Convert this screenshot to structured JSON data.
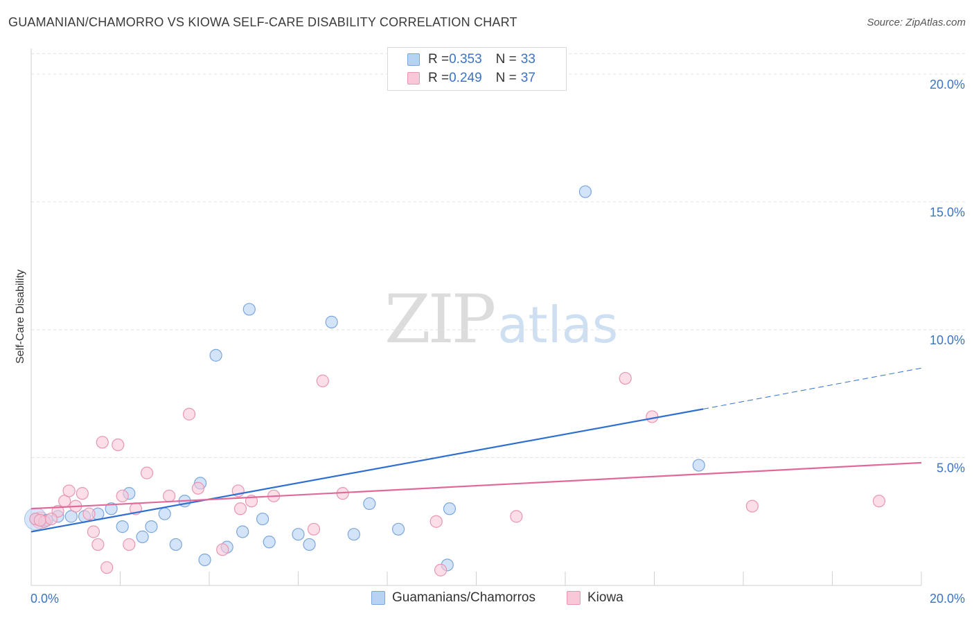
{
  "title": "GUAMANIAN/CHAMORRO VS KIOWA SELF-CARE DISABILITY CORRELATION CHART",
  "source": "Source: ZipAtlas.com",
  "watermark": {
    "zip": "ZIP",
    "atlas": "atlas"
  },
  "legend": {
    "series1": {
      "r_label": "R = ",
      "r_value": "0.353",
      "n_label": "N = ",
      "n_value": "33"
    },
    "series2": {
      "r_label": "R = ",
      "r_value": "0.249",
      "n_label": "N = ",
      "n_value": "37"
    }
  },
  "colors": {
    "blue_fill": "#b8d2f4",
    "blue_stroke": "#7aa6dc",
    "blue_line": "#2f6fd0",
    "pink_fill": "#f8c8d8",
    "pink_stroke": "#e896b2",
    "pink_line": "#e0699a",
    "tick_label": "#3b73c4"
  },
  "chart_data": {
    "type": "scatter",
    "title": "GUAMANIAN/CHAMORRO VS KIOWA SELF-CARE DISABILITY CORRELATION CHART",
    "xlabel": "",
    "ylabel": "Self-Care Disability",
    "xlim": [
      0,
      20
    ],
    "ylim": [
      0,
      21
    ],
    "x_tick_labels": [
      "0.0%",
      "20.0%"
    ],
    "y_ticks": [
      5,
      10,
      15,
      20
    ],
    "y_tick_labels": [
      "5.0%",
      "10.0%",
      "15.0%",
      "20.0%"
    ],
    "grid": true,
    "legend_position": "top-center",
    "series": [
      {
        "name": "Guamanians/Chamorros",
        "r": 0.353,
        "n": 33,
        "points": [
          [
            0.1,
            2.6
          ],
          [
            0.3,
            2.5
          ],
          [
            0.6,
            2.7
          ],
          [
            0.9,
            2.7
          ],
          [
            1.2,
            2.7
          ],
          [
            1.5,
            2.8
          ],
          [
            1.8,
            3.0
          ],
          [
            2.05,
            2.3
          ],
          [
            2.2,
            3.6
          ],
          [
            2.5,
            1.9
          ],
          [
            2.7,
            2.3
          ],
          [
            3.0,
            2.8
          ],
          [
            3.25,
            1.6
          ],
          [
            3.45,
            3.3
          ],
          [
            3.8,
            4.0
          ],
          [
            3.9,
            1.0
          ],
          [
            4.15,
            9.0
          ],
          [
            4.4,
            1.5
          ],
          [
            4.75,
            2.1
          ],
          [
            4.9,
            10.8
          ],
          [
            5.2,
            2.6
          ],
          [
            5.35,
            1.7
          ],
          [
            6.0,
            2.0
          ],
          [
            6.25,
            1.6
          ],
          [
            6.75,
            10.3
          ],
          [
            7.25,
            2.0
          ],
          [
            7.6,
            3.2
          ],
          [
            8.25,
            2.2
          ],
          [
            9.35,
            0.8
          ],
          [
            9.4,
            3.0
          ],
          [
            12.45,
            15.4
          ],
          [
            15.0,
            4.7
          ],
          [
            0.35,
            2.55
          ]
        ]
      },
      {
        "name": "Kiowa",
        "r": 0.249,
        "n": 37,
        "points": [
          [
            0.1,
            2.6
          ],
          [
            0.3,
            2.5
          ],
          [
            0.6,
            2.9
          ],
          [
            0.75,
            3.3
          ],
          [
            0.85,
            3.7
          ],
          [
            1.0,
            3.1
          ],
          [
            1.15,
            3.6
          ],
          [
            1.3,
            2.8
          ],
          [
            1.4,
            2.1
          ],
          [
            1.5,
            1.6
          ],
          [
            1.6,
            5.6
          ],
          [
            1.7,
            0.7
          ],
          [
            1.95,
            5.5
          ],
          [
            2.05,
            3.5
          ],
          [
            2.2,
            1.6
          ],
          [
            2.35,
            3.0
          ],
          [
            2.6,
            4.4
          ],
          [
            3.1,
            3.5
          ],
          [
            3.55,
            6.7
          ],
          [
            3.75,
            3.8
          ],
          [
            4.3,
            1.4
          ],
          [
            4.65,
            3.7
          ],
          [
            4.7,
            3.0
          ],
          [
            4.95,
            3.3
          ],
          [
            5.45,
            3.5
          ],
          [
            6.35,
            2.2
          ],
          [
            6.55,
            8.0
          ],
          [
            7.0,
            3.6
          ],
          [
            9.1,
            2.5
          ],
          [
            9.2,
            0.6
          ],
          [
            10.9,
            2.7
          ],
          [
            13.35,
            8.1
          ],
          [
            13.95,
            6.6
          ],
          [
            16.2,
            3.1
          ],
          [
            19.05,
            3.3
          ],
          [
            0.2,
            2.55
          ],
          [
            0.45,
            2.6
          ]
        ]
      }
    ],
    "trendlines": [
      {
        "series": "Guamanians/Chamorros",
        "x_start": 0,
        "y_start": 2.1,
        "x_solid_end": 15.1,
        "y_solid_end": 6.9,
        "x_end": 20,
        "y_end": 8.5
      },
      {
        "series": "Kiowa",
        "x_start": 0,
        "y_start": 3.0,
        "x_end": 20,
        "y_end": 4.8
      }
    ]
  },
  "bottom_legend": {
    "item1": "Guamanians/Chamorros",
    "item2": "Kiowa"
  }
}
